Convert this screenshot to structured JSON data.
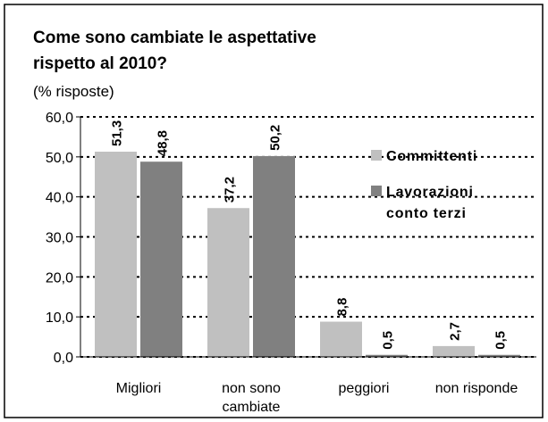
{
  "chart_data": {
    "type": "bar",
    "title": "Come sono cambiate le aspettative rispetto al 2010?",
    "subtitle": "(% risposte)",
    "categories": [
      "Migliori",
      "non sono cambiate",
      "peggiori",
      "non risponde"
    ],
    "series": [
      {
        "name": "Committenti",
        "color": "#c0c0c0",
        "values": [
          51.3,
          37.2,
          8.8,
          2.7
        ],
        "value_labels": [
          "51,3",
          "37,2",
          "8,8",
          "2,7"
        ]
      },
      {
        "name": "Lavorazioni conto terzi",
        "color": "#808080",
        "values": [
          48.8,
          50.2,
          0.5,
          0.5
        ],
        "value_labels": [
          "48,8",
          "50,2",
          "0,5",
          "0,5"
        ]
      }
    ],
    "ylim": [
      0,
      60
    ],
    "yticks": [
      {
        "value": 0,
        "label": "0,0"
      },
      {
        "value": 10,
        "label": "10,0"
      },
      {
        "value": 20,
        "label": "20,0"
      },
      {
        "value": 30,
        "label": "30,0"
      },
      {
        "value": 40,
        "label": "40,0"
      },
      {
        "value": 50,
        "label": "50,0"
      },
      {
        "value": 60,
        "label": "60,0"
      }
    ],
    "grid": true,
    "legend": "right"
  }
}
